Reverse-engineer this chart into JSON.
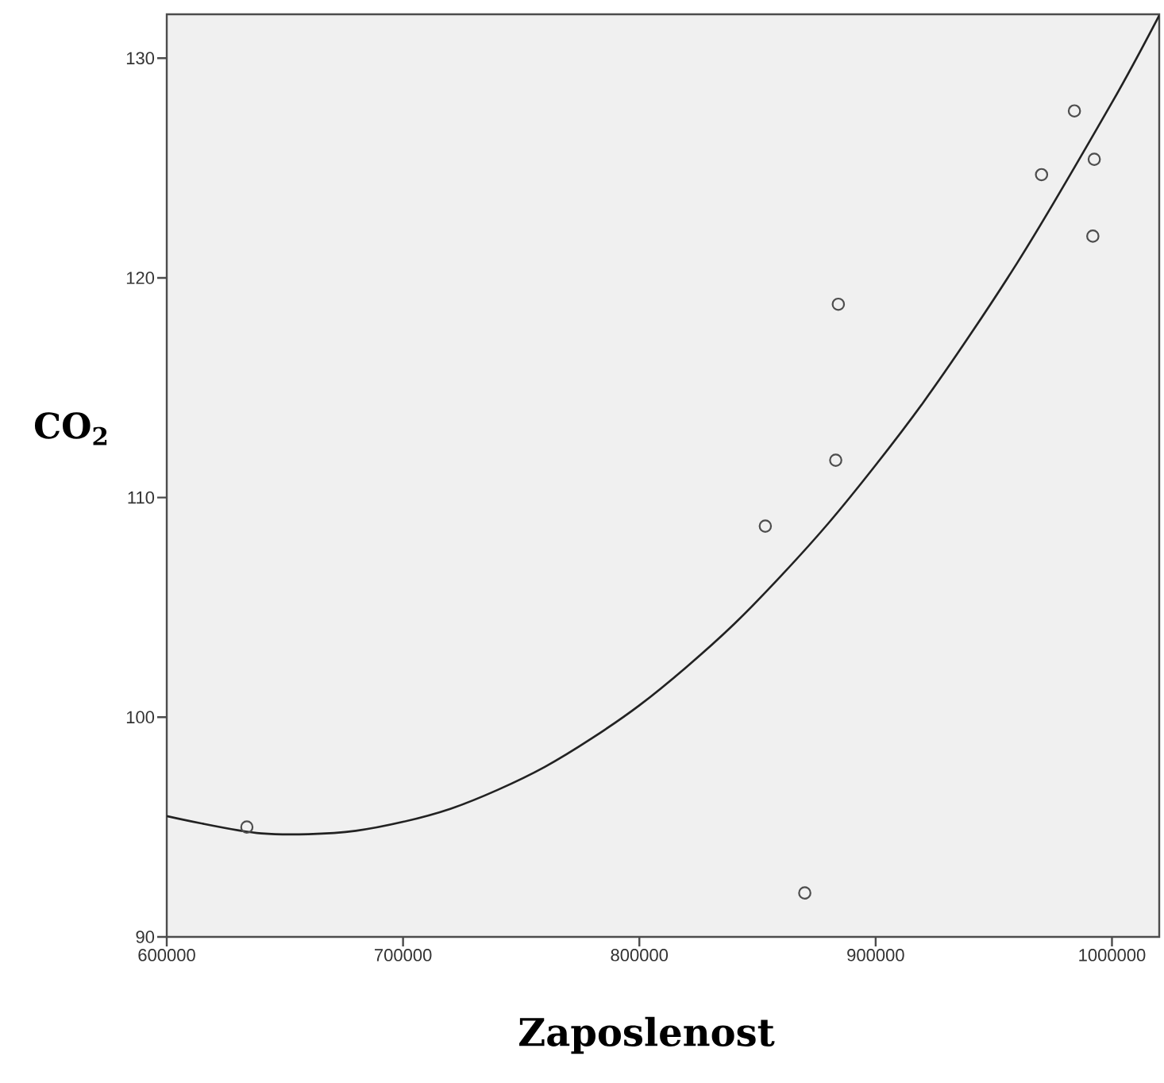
{
  "chart_data": {
    "type": "scatter",
    "xlabel": "Zaposlenost",
    "ylabel": "CO$_{2}$",
    "xlim": [
      600000,
      1020000
    ],
    "ylim": [
      90,
      132
    ],
    "xticks": [
      600000,
      700000,
      800000,
      900000,
      1000000
    ],
    "yticks": [
      90,
      100,
      110,
      120,
      130
    ],
    "grid": false,
    "marker": "circle",
    "series": [
      {
        "color": "#4d4d4d",
        "x": [
          633900,
          853300,
          883100,
          870000,
          884200,
          970200,
          984100,
          992500,
          991900
        ],
        "values": [
          95.0,
          108.7,
          111.7,
          92.0,
          118.8,
          124.7,
          127.6,
          125.4,
          121.9
        ]
      },
      {
        "type": "line",
        "color": "#222222",
        "marker": "none",
        "x": [
          600000,
          640000,
          680000,
          720000,
          760000,
          800000,
          840000,
          880000,
          920000,
          960000,
          1000000,
          1020000
        ],
        "values": [
          95.5,
          94.71,
          94.83,
          95.83,
          97.74,
          100.54,
          104.23,
          108.83,
          114.31,
          120.7,
          127.98,
          131.95
        ]
      }
    ]
  }
}
